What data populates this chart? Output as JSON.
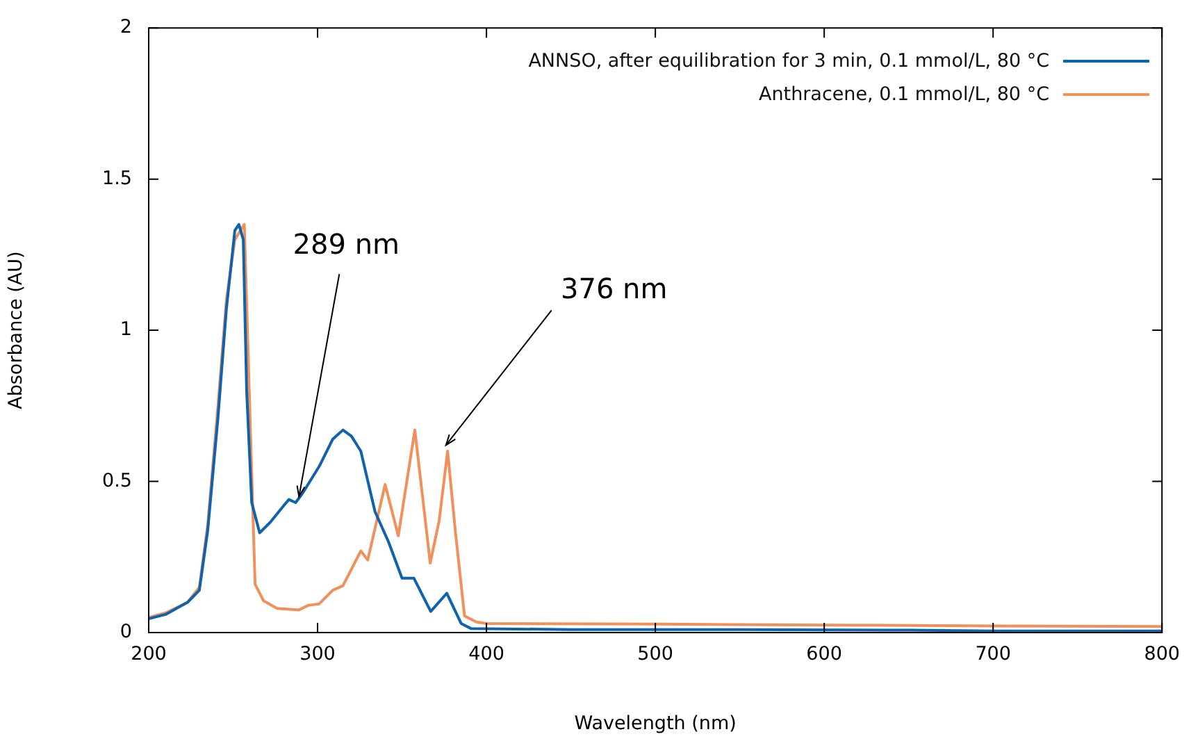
{
  "chart_data": {
    "type": "line",
    "xlabel": "Wavelength (nm)",
    "ylabel": "Absorbance (AU)",
    "xlim": [
      200,
      800
    ],
    "xticks": [
      200,
      300,
      400,
      500,
      600,
      700,
      800
    ],
    "ylim": [
      0,
      2
    ],
    "yticks": [
      0,
      0.5,
      1,
      1.5,
      2
    ],
    "grid": false,
    "legend": "top right",
    "marker": "none",
    "line_style": "solid",
    "annotations": [
      {
        "text": "289 nm",
        "x": 289,
        "y": 0.45
      },
      {
        "text": "376 nm",
        "x": 376,
        "y": 0.62
      }
    ],
    "series": [
      {
        "name": "ANNSO, after equilibration for 3 min, 0.1 mmol/L, 80 °C",
        "color": "#0f62ad",
        "x": [
          200,
          210,
          223,
          230,
          235,
          241,
          246,
          251,
          253.4,
          256,
          258,
          261,
          265.7,
          272,
          280,
          283,
          287,
          291,
          301,
          309,
          315,
          320,
          325.6,
          334,
          342,
          350,
          357,
          367,
          376.5,
          385,
          391,
          450,
          550,
          650,
          700,
          800
        ],
        "values": [
          0.046,
          0.06,
          0.1,
          0.14,
          0.34,
          0.71,
          1.07,
          1.33,
          1.35,
          1.3,
          0.8,
          0.43,
          0.33,
          0.365,
          0.42,
          0.44,
          0.43,
          0.46,
          0.55,
          0.64,
          0.67,
          0.65,
          0.6,
          0.4,
          0.3,
          0.18,
          0.18,
          0.07,
          0.13,
          0.03,
          0.013,
          0.01,
          0.01,
          0.008,
          0.005,
          0.005
        ]
      },
      {
        "name": "Anthracene, 0.1 mmol/L, 80 °C",
        "color": "#f0905a",
        "x": [
          200,
          210,
          223,
          230,
          235,
          241,
          246,
          251,
          256.6,
          260,
          263,
          268,
          276,
          289,
          294.5,
          301,
          309,
          315,
          325.6,
          329.7,
          340,
          347.8,
          357.6,
          366.7,
          372,
          377,
          381.5,
          387,
          394,
          400,
          500,
          600,
          700,
          800
        ],
        "values": [
          0.05,
          0.065,
          0.1,
          0.15,
          0.36,
          0.75,
          1.1,
          1.3,
          1.35,
          0.71,
          0.16,
          0.105,
          0.08,
          0.075,
          0.09,
          0.095,
          0.14,
          0.155,
          0.27,
          0.24,
          0.49,
          0.32,
          0.67,
          0.23,
          0.37,
          0.6,
          0.34,
          0.055,
          0.035,
          0.03,
          0.028,
          0.025,
          0.022,
          0.02
        ]
      }
    ]
  }
}
